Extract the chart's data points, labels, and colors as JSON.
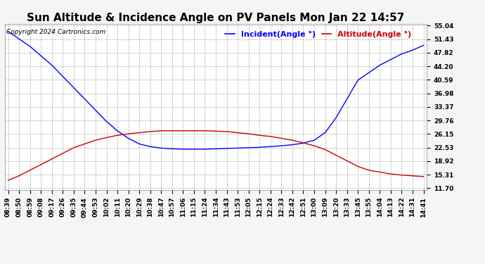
{
  "title": "Sun Altitude & Incidence Angle on PV Panels Mon Jan 22 14:57",
  "copyright": "Copyright 2024 Cartronics.com",
  "legend_incident": "Incident(Angle °)",
  "legend_altitude": "Altitude(Angle °)",
  "incident_color": "#0000ff",
  "altitude_color": "#cc0000",
  "background_color": "#f5f5f5",
  "plot_bg_color": "#ffffff",
  "grid_color": "#aaaaaa",
  "ytick_labels": [
    "55.04",
    "51.43",
    "47.82",
    "44.20",
    "40.59",
    "36.98",
    "33.37",
    "29.76",
    "26.15",
    "22.53",
    "18.92",
    "15.31",
    "11.70"
  ],
  "ymin": 11.7,
  "ymax": 55.04,
  "x_labels": [
    "08:39",
    "08:50",
    "08:59",
    "09:08",
    "09:17",
    "09:26",
    "09:35",
    "09:44",
    "09:53",
    "10:02",
    "10:11",
    "10:20",
    "10:29",
    "10:38",
    "10:47",
    "10:57",
    "11:06",
    "11:15",
    "11:24",
    "11:34",
    "11:43",
    "11:53",
    "12:05",
    "12:15",
    "12:24",
    "12:33",
    "12:42",
    "12:51",
    "13:00",
    "13:09",
    "13:20",
    "13:33",
    "13:45",
    "13:55",
    "14:04",
    "14:13",
    "14:22",
    "14:31",
    "14:41"
  ],
  "incident_values": [
    53.5,
    51.5,
    49.5,
    47.0,
    44.5,
    41.5,
    38.5,
    35.5,
    32.5,
    29.5,
    27.0,
    25.0,
    23.5,
    22.8,
    22.4,
    22.2,
    22.1,
    22.1,
    22.1,
    22.2,
    22.3,
    22.4,
    22.5,
    22.6,
    22.8,
    23.0,
    23.3,
    23.7,
    24.5,
    26.5,
    30.5,
    35.5,
    40.5,
    42.5,
    44.5,
    46.0,
    47.5,
    48.5,
    49.8
  ],
  "altitude_values": [
    13.8,
    15.0,
    16.5,
    18.0,
    19.5,
    21.0,
    22.5,
    23.5,
    24.5,
    25.2,
    25.8,
    26.2,
    26.5,
    26.8,
    27.0,
    27.0,
    27.0,
    27.0,
    27.0,
    26.9,
    26.8,
    26.5,
    26.2,
    25.8,
    25.5,
    25.0,
    24.5,
    23.8,
    23.0,
    22.0,
    20.5,
    19.0,
    17.5,
    16.5,
    16.0,
    15.5,
    15.2,
    15.0,
    14.8
  ],
  "title_fontsize": 11,
  "tick_fontsize": 6.5,
  "legend_fontsize": 8,
  "copyright_fontsize": 6.5
}
